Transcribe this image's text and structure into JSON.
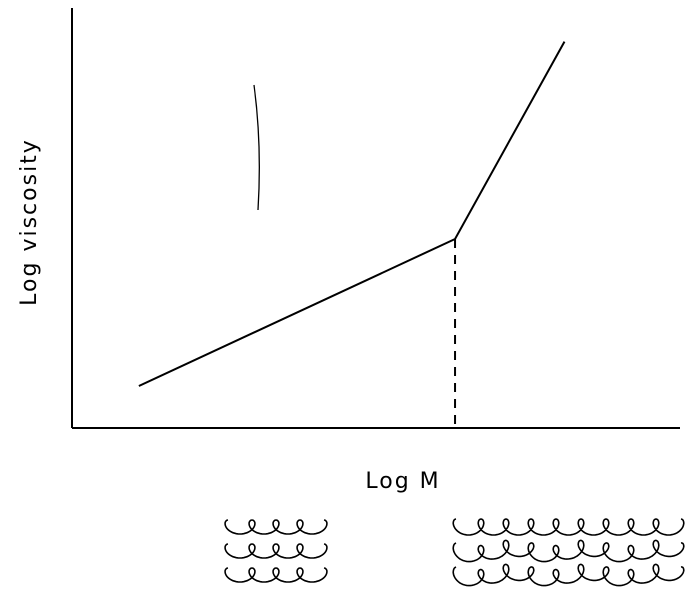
{
  "chart_data": {
    "type": "line",
    "x_label": "Log M",
    "y_label": "Log viscosity",
    "x": [
      1.1,
      6.3,
      8.1
    ],
    "values": [
      1,
      4.5,
      9.2
    ],
    "color": "#000000",
    "xlim": [
      0,
      10
    ],
    "ylim": [
      0,
      10
    ]
  }
}
